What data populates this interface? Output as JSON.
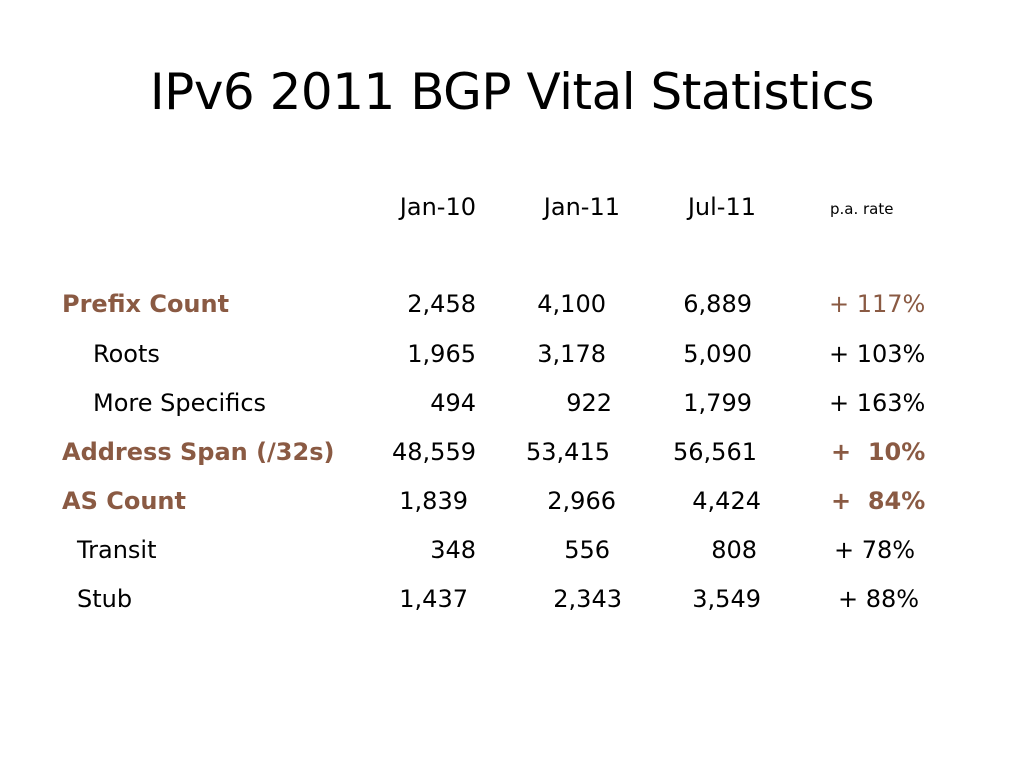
{
  "slide": {
    "title": "IPv6 2011 BGP Vital Statistics"
  },
  "table": {
    "headers": [
      "Jan-10",
      "Jan-11",
      "Jul-11",
      "p.a. rate"
    ],
    "rows": [
      {
        "label": "Prefix Count",
        "values": [
          "2,458",
          "4,100",
          "6,889"
        ],
        "rate": "+ 117%"
      },
      {
        "label": "Roots",
        "values": [
          "1,965",
          "3,178",
          "5,090"
        ],
        "rate": "+ 103%"
      },
      {
        "label": "More Specifics",
        "values": [
          "494",
          "922",
          "1,799"
        ],
        "rate": "+ 163%"
      },
      {
        "label": "Address Span (/32s)",
        "values": [
          "48,559",
          "53,415",
          "56,561"
        ],
        "rate": "+  10%"
      },
      {
        "label": "AS Count",
        "values": [
          "1,839",
          "2,966",
          "4,424"
        ],
        "rate": "+  84%"
      },
      {
        "label": "Transit",
        "values": [
          "348",
          "556",
          "808"
        ],
        "rate": "+ 78%"
      },
      {
        "label": "Stub",
        "values": [
          "1,437",
          "2,343",
          "3,549"
        ],
        "rate": "+ 88%"
      }
    ]
  },
  "colors": {
    "accent": "#8a5a43",
    "text": "#000000",
    "background": "#ffffff"
  }
}
